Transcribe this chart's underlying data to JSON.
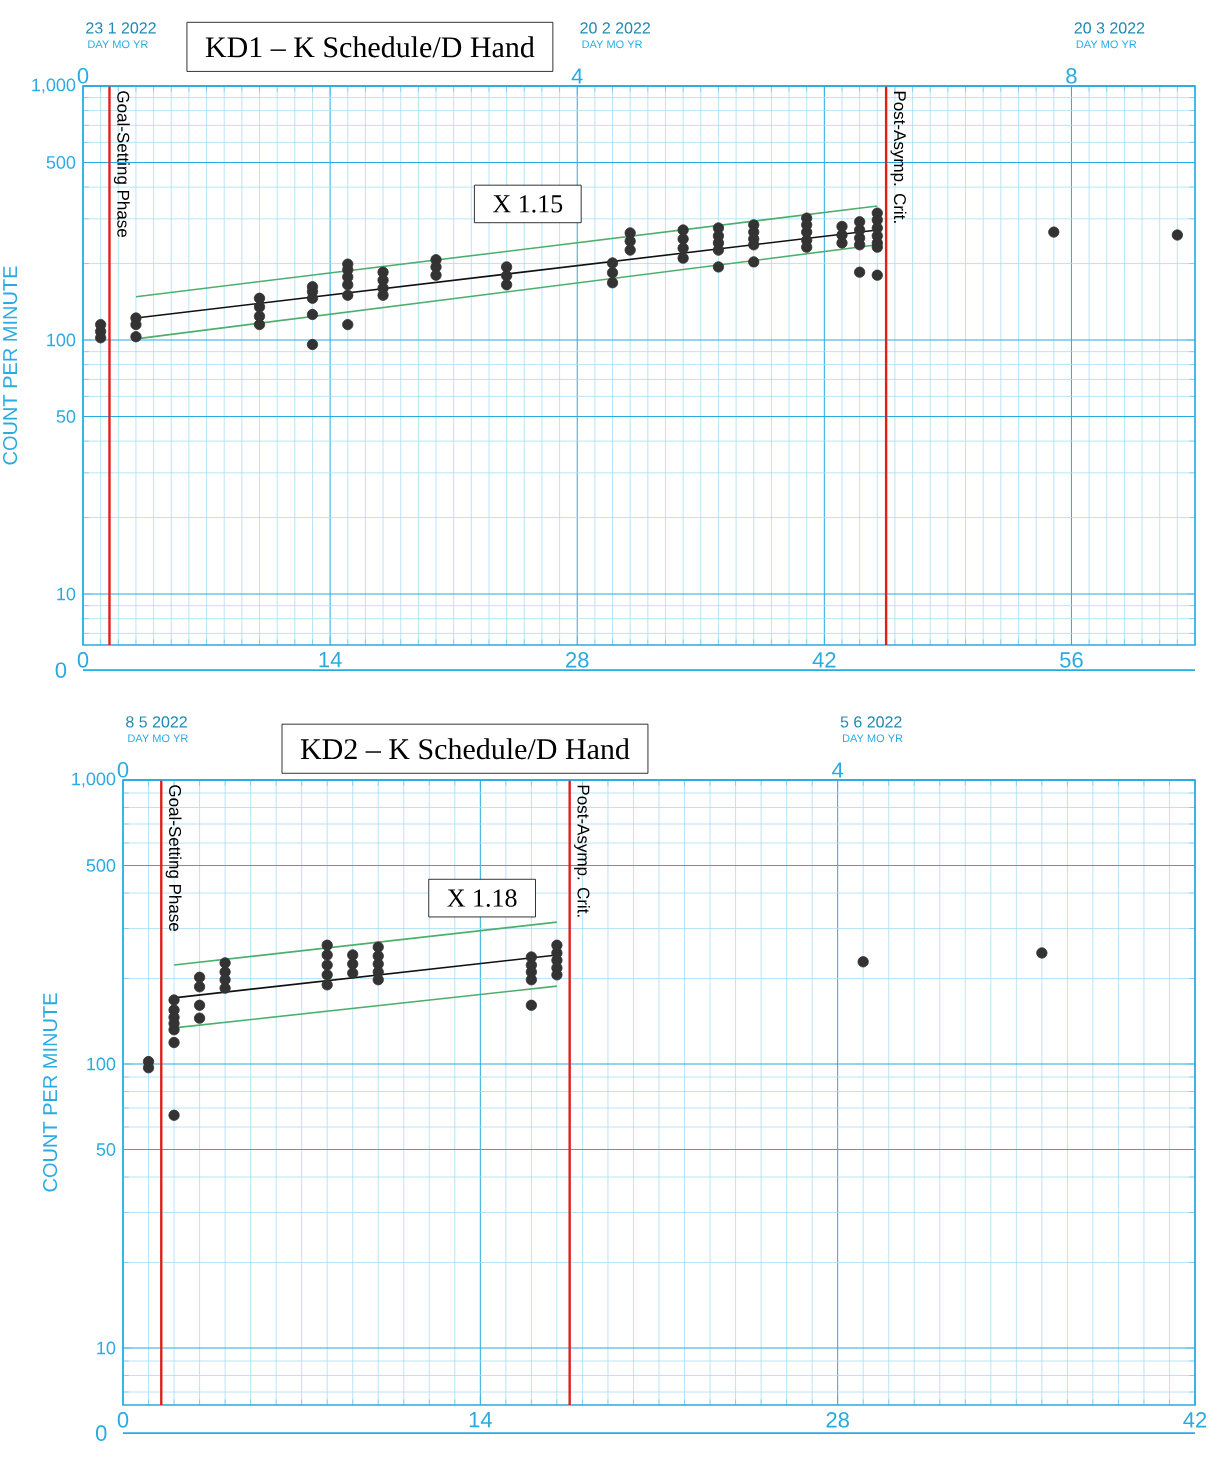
{
  "chart_data": [
    {
      "type": "scatter",
      "title": "KD1 – K Schedule/D Hand",
      "ylabel": "COUNT PER MINUTE",
      "log": "y",
      "grid": true,
      "xlim": [
        0,
        63
      ],
      "xticks": [
        0,
        {
          "value": 1,
          "label": null
        },
        {
          "value": 2,
          "label": null
        },
        {
          "value": 3,
          "label": null
        },
        {
          "value": 4,
          "label": null
        },
        {
          "value": 5,
          "label": null
        },
        {
          "value": 6,
          "label": null
        },
        {
          "value": 7,
          "label": null
        },
        {
          "value": 8,
          "label": null
        },
        {
          "value": 9,
          "label": null
        },
        {
          "value": 10,
          "label": null
        },
        {
          "value": 11,
          "label": null
        },
        {
          "value": 12,
          "label": null
        },
        {
          "value": 13,
          "label": null
        },
        14,
        {
          "value": 15,
          "label": null
        },
        {
          "value": 16,
          "label": null
        },
        {
          "value": 17,
          "label": null
        },
        {
          "value": 18,
          "label": null
        },
        {
          "value": 19,
          "label": null
        },
        {
          "value": 20,
          "label": null
        },
        {
          "value": 21,
          "label": null
        },
        {
          "value": 22,
          "label": null
        },
        {
          "value": 23,
          "label": null
        },
        {
          "value": 24,
          "label": null
        },
        {
          "value": 25,
          "label": null
        },
        {
          "value": 26,
          "label": null
        },
        {
          "value": 27,
          "label": null
        },
        28,
        {
          "value": 29,
          "label": null
        },
        {
          "value": 30,
          "label": null
        },
        {
          "value": 31,
          "label": null
        },
        {
          "value": 32,
          "label": null
        },
        {
          "value": 33,
          "label": null
        },
        {
          "value": 34,
          "label": null
        },
        {
          "value": 35,
          "label": null
        },
        {
          "value": 36,
          "label": null
        },
        {
          "value": 37,
          "label": null
        },
        {
          "value": 38,
          "label": null
        },
        {
          "value": 39,
          "label": null
        },
        {
          "value": 40,
          "label": null
        },
        {
          "value": 41,
          "label": null
        },
        42,
        {
          "value": 43,
          "label": null
        },
        {
          "value": 44,
          "label": null
        },
        {
          "value": 45,
          "label": null
        },
        {
          "value": 46,
          "label": null
        },
        {
          "value": 47,
          "label": null
        },
        {
          "value": 48,
          "label": null
        },
        {
          "value": 49,
          "label": null
        },
        {
          "value": 50,
          "label": null
        },
        {
          "value": 51,
          "label": null
        },
        {
          "value": 52,
          "label": null
        },
        {
          "value": 53,
          "label": null
        },
        {
          "value": 54,
          "label": null
        },
        {
          "value": 55,
          "label": null
        },
        56,
        {
          "value": 57,
          "label": null
        },
        {
          "value": 58,
          "label": null
        },
        {
          "value": 59,
          "label": null
        },
        {
          "value": 60,
          "label": null
        },
        {
          "value": 61,
          "label": null
        },
        {
          "value": 62,
          "label": null
        },
        {
          "value": 63,
          "label": null
        }
      ],
      "ylim": [
        6.3,
        1000
      ],
      "yticks": [
        {
          "value": 1000,
          "label": "1,000"
        },
        500,
        100,
        50,
        10
      ],
      "x2lim": [
        0,
        9
      ],
      "x2ticks": [
        0,
        4,
        8
      ],
      "ref_lines": [
        {
          "axis": "x",
          "value": 1.5,
          "label": "Goal-Setting Phase",
          "color": "#e0201b"
        },
        {
          "axis": "x",
          "value": 45.5,
          "label": "Post-Asymp. Crit.",
          "color": "#e0201b"
        }
      ],
      "annotations": [
        "X 1.15",
        "0",
        "23 1 2022",
        "DAY MO YR",
        "20 2 2022",
        "DAY MO YR",
        "20 3 2022",
        "DAY MO YR"
      ],
      "series": [
        {
          "marker": "circle",
          "color": "#333333",
          "x": [
            1,
            1,
            1,
            3,
            3,
            3,
            10,
            10,
            10,
            10,
            13,
            13,
            13,
            13,
            13,
            15,
            15,
            15,
            15,
            15,
            15,
            17,
            17,
            17,
            17,
            20,
            20,
            20,
            24,
            24,
            24,
            30,
            30,
            30,
            31,
            31,
            31,
            34,
            34,
            34,
            34,
            36,
            36,
            36,
            36,
            36,
            38,
            38,
            38,
            38,
            38,
            41,
            41,
            41,
            41,
            41,
            43,
            43,
            43,
            44,
            44,
            44,
            44,
            44,
            45,
            45,
            45,
            45,
            45,
            45,
            45,
            55,
            62
          ],
          "values": [
            115,
            108,
            102,
            122,
            115,
            103,
            146,
            135,
            124,
            115,
            162,
            155,
            146,
            126,
            96,
            199,
            189,
            177,
            165,
            150,
            115,
            185,
            172,
            160,
            150,
            207,
            194,
            180,
            194,
            179,
            165,
            201,
            184,
            168,
            264,
            245,
            226,
            271,
            250,
            230,
            210,
            276,
            257,
            241,
            226,
            194,
            284,
            266,
            250,
            237,
            203,
            302,
            284,
            266,
            247,
            232,
            280,
            259,
            241,
            292,
            271,
            252,
            237,
            185,
            316,
            297,
            276,
            257,
            241,
            232,
            180,
            266,
            259
          ]
        },
        {
          "type": "line",
          "marker": "none",
          "color": "#111111",
          "x": [
            3,
            45
          ],
          "values": [
            122,
            271
          ]
        },
        {
          "type": "line",
          "marker": "none",
          "color": "#4caf6e",
          "x": [
            3,
            45
          ],
          "values": [
            148,
            337
          ]
        },
        {
          "type": "line",
          "marker": "none",
          "color": "#4caf6e",
          "x": [
            3,
            45
          ],
          "values": [
            101,
            237
          ]
        }
      ]
    },
    {
      "type": "scatter",
      "title": "KD2 – K Schedule/D Hand",
      "ylabel": "COUNT PER MINUTE",
      "log": "y",
      "grid": true,
      "xlim": [
        0,
        42
      ],
      "xticks": [
        0,
        {
          "value": 1,
          "label": null
        },
        {
          "value": 2,
          "label": null
        },
        {
          "value": 3,
          "label": null
        },
        {
          "value": 4,
          "label": null
        },
        {
          "value": 5,
          "label": null
        },
        {
          "value": 6,
          "label": null
        },
        {
          "value": 7,
          "label": null
        },
        {
          "value": 8,
          "label": null
        },
        {
          "value": 9,
          "label": null
        },
        {
          "value": 10,
          "label": null
        },
        {
          "value": 11,
          "label": null
        },
        {
          "value": 12,
          "label": null
        },
        {
          "value": 13,
          "label": null
        },
        14,
        {
          "value": 15,
          "label": null
        },
        {
          "value": 16,
          "label": null
        },
        {
          "value": 17,
          "label": null
        },
        {
          "value": 18,
          "label": null
        },
        {
          "value": 19,
          "label": null
        },
        {
          "value": 20,
          "label": null
        },
        {
          "value": 21,
          "label": null
        },
        {
          "value": 22,
          "label": null
        },
        {
          "value": 23,
          "label": null
        },
        {
          "value": 24,
          "label": null
        },
        {
          "value": 25,
          "label": null
        },
        {
          "value": 26,
          "label": null
        },
        {
          "value": 27,
          "label": null
        },
        28,
        {
          "value": 29,
          "label": null
        },
        {
          "value": 30,
          "label": null
        },
        {
          "value": 31,
          "label": null
        },
        {
          "value": 32,
          "label": null
        },
        {
          "value": 33,
          "label": null
        },
        {
          "value": 34,
          "label": null
        },
        {
          "value": 35,
          "label": null
        },
        {
          "value": 36,
          "label": null
        },
        {
          "value": 37,
          "label": null
        },
        {
          "value": 38,
          "label": null
        },
        {
          "value": 39,
          "label": null
        },
        {
          "value": 40,
          "label": null
        },
        {
          "value": 41,
          "label": null
        },
        42
      ],
      "ylim": [
        6.3,
        1000
      ],
      "yticks": [
        {
          "value": 1000,
          "label": "1,000"
        },
        500,
        100,
        50,
        10
      ],
      "x2lim": [
        0,
        6
      ],
      "x2ticks": [
        0,
        4
      ],
      "ref_lines": [
        {
          "axis": "x",
          "value": 1.5,
          "label": "Goal-Setting Phase",
          "color": "#e0201b"
        },
        {
          "axis": "x",
          "value": 17.5,
          "label": "Post-Asymp. Crit.",
          "color": "#e0201b"
        }
      ],
      "annotations": [
        "X 1.18",
        "0",
        "8 5 2022",
        "DAY MO YR",
        "5 6 2022",
        "DAY MO YR"
      ],
      "series": [
        {
          "marker": "circle",
          "color": "#333333",
          "x": [
            1,
            1,
            2,
            2,
            2,
            2,
            2,
            2,
            2,
            3,
            3,
            3,
            3,
            4,
            4,
            4,
            4,
            8,
            8,
            8,
            8,
            8,
            9,
            9,
            9,
            10,
            10,
            10,
            10,
            10,
            16,
            16,
            16,
            16,
            16,
            17,
            17,
            17,
            17,
            17,
            29,
            36
          ],
          "values": [
            102,
            97,
            168,
            155,
            146,
            139,
            132,
            119,
            66,
            202,
            187,
            161,
            145,
            227,
            211,
            198,
            185,
            262,
            242,
            223,
            206,
            190,
            242,
            225,
            209,
            258,
            240,
            225,
            211,
            198,
            238,
            223,
            211,
            198,
            161,
            262,
            246,
            232,
            218,
            206,
            229,
            246
          ]
        },
        {
          "type": "line",
          "marker": "none",
          "color": "#111111",
          "x": [
            2,
            17
          ],
          "values": [
            171,
            242
          ]
        },
        {
          "type": "line",
          "marker": "none",
          "color": "#4caf6e",
          "x": [
            2,
            17
          ],
          "values": [
            223,
            316
          ]
        },
        {
          "type": "line",
          "marker": "none",
          "color": "#4caf6e",
          "x": [
            2,
            17
          ],
          "values": [
            134,
            188
          ]
        }
      ]
    }
  ]
}
